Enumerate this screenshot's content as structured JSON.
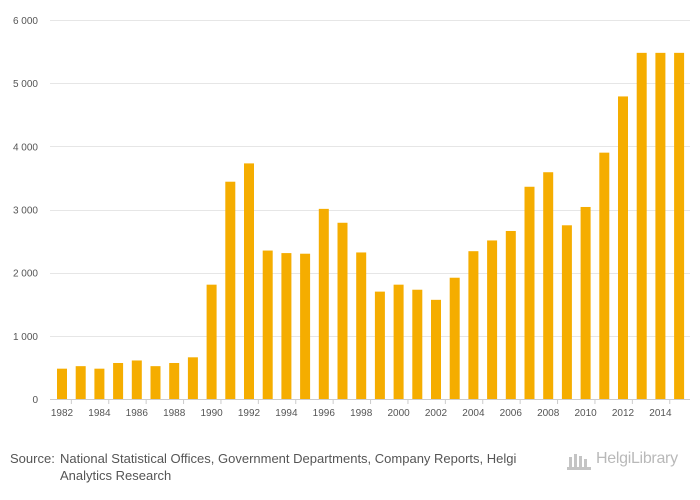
{
  "chart_data": {
    "type": "bar",
    "categories": [
      "1982",
      "1983",
      "1984",
      "1985",
      "1986",
      "1987",
      "1988",
      "1989",
      "1990",
      "1991",
      "1992",
      "1993",
      "1994",
      "1995",
      "1996",
      "1997",
      "1998",
      "1999",
      "2000",
      "2001",
      "2002",
      "2003",
      "2004",
      "2005",
      "2006",
      "2007",
      "2008",
      "2009",
      "2010",
      "2011",
      "2012",
      "2013",
      "2014",
      "2015"
    ],
    "values": [
      480,
      520,
      480,
      570,
      610,
      520,
      570,
      660,
      1810,
      3440,
      3730,
      2350,
      2310,
      2300,
      3010,
      2790,
      2320,
      1700,
      1810,
      1730,
      1570,
      1920,
      2340,
      2510,
      2660,
      3360,
      3590,
      2750,
      3040,
      3900,
      4790,
      5480,
      5480,
      5480
    ],
    "x_tick_labels": [
      "1982",
      "1984",
      "1986",
      "1988",
      "1990",
      "1992",
      "1994",
      "1996",
      "1998",
      "2000",
      "2002",
      "2004",
      "2006",
      "2008",
      "2010",
      "2012",
      "2014"
    ],
    "y_ticks": [
      0,
      1000,
      2000,
      3000,
      4000,
      5000,
      6000
    ],
    "y_tick_labels": [
      "0",
      "1 000",
      "2 000",
      "3 000",
      "4 000",
      "5 000",
      "6 000"
    ],
    "ylim": [
      0,
      6000
    ],
    "title": "",
    "xlabel": "",
    "ylabel": "",
    "grid": true,
    "bar_color": "#f5ad00",
    "grid_color": "#e6e6e6"
  },
  "footer": {
    "source_prefix": "Source:",
    "source_text": "National Statistical Offices, Government Departments, Company Reports, Helgi Analytics Research",
    "logo_text": "HelgiLibrary"
  }
}
